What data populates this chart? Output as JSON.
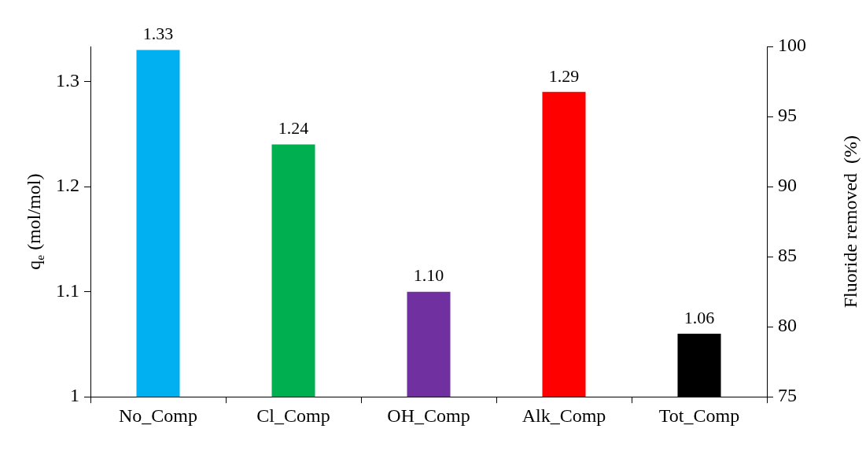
{
  "chart_data": {
    "type": "bar",
    "categories": [
      "No_Comp",
      "Cl_Comp",
      "OH_Comp",
      "Alk_Comp",
      "Tot_Comp"
    ],
    "values": [
      1.33,
      1.24,
      1.1,
      1.29,
      1.06
    ],
    "value_labels": [
      "1.33",
      "1.24",
      "1.10",
      "1.29",
      "1.06"
    ],
    "colors": [
      "#00b0f0",
      "#00b050",
      "#7030a0",
      "#ff0000",
      "#000000"
    ],
    "ylabel": "q$_{e}$ (mol/mol)",
    "y2label": "Fluoride removed  (%)",
    "ylim": [
      1,
      1.3333
    ],
    "yticks": [
      1,
      1.1,
      1.2,
      1.3
    ],
    "y2lim": [
      75,
      100
    ],
    "y2ticks": [
      75,
      80,
      85,
      90,
      95,
      100
    ]
  }
}
